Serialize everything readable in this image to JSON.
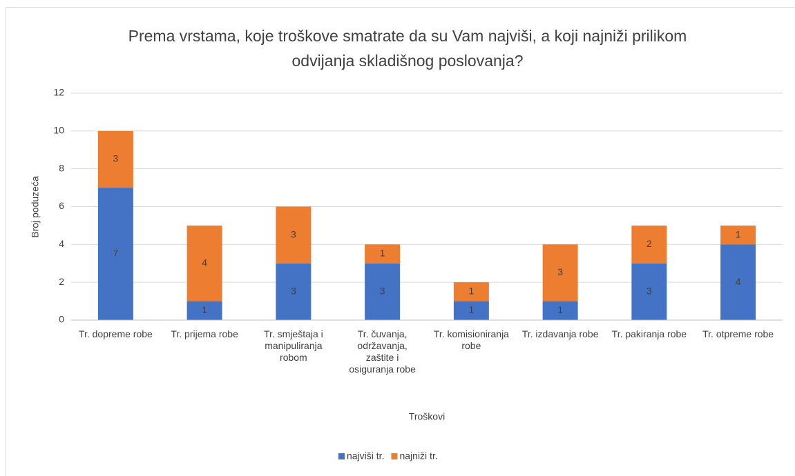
{
  "chart_data": {
    "type": "stacked_bar",
    "title": "Prema vrstama, koje troškove smatrate da su Vam najviši, a koji najniži prilikom odvijanja skladišnog poslovanja?",
    "x_label": "Troškovi",
    "y_label": "Broj poduzeća",
    "categories": [
      "Tr. dopreme robe",
      "Tr. prijema robe",
      "Tr. smještaja i manipuliranja robom",
      "Tr. čuvanja, održavanja, zaštite i osiguranja robe",
      "Tr. komisioniranja robe",
      "Tr. izdavanja robe",
      "Tr. pakiranja robe",
      "Tr. otpreme robe"
    ],
    "series": [
      {
        "name": "najviši tr.",
        "color": "#4472c4",
        "values": [
          7,
          1,
          3,
          3,
          1,
          1,
          3,
          4
        ]
      },
      {
        "name": "najniži tr.",
        "color": "#ed7d31",
        "values": [
          3,
          4,
          3,
          1,
          1,
          3,
          2,
          1
        ]
      }
    ],
    "ylim": [
      0,
      12
    ],
    "yticks": [
      0,
      2,
      4,
      6,
      8,
      10,
      12
    ],
    "grid": true,
    "legend": "bottom"
  }
}
